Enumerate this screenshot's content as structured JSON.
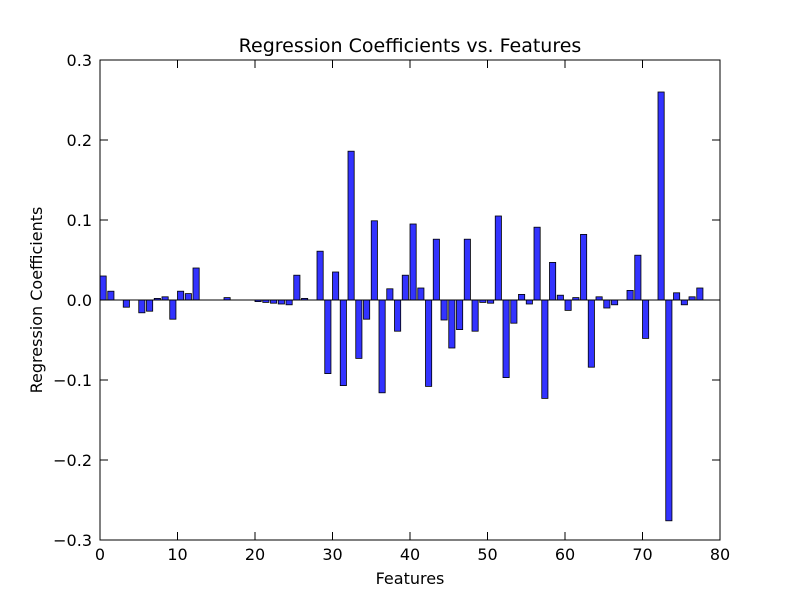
{
  "chart_data": {
    "type": "bar",
    "title": "Regression Coefficients vs. Features",
    "xlabel": "Features",
    "ylabel": "Regression Coefficients",
    "xlim": [
      0,
      80
    ],
    "ylim": [
      -0.3,
      0.3
    ],
    "xticks": [
      0,
      10,
      20,
      30,
      40,
      50,
      60,
      70,
      80
    ],
    "yticks": [
      -0.3,
      -0.2,
      -0.1,
      0.0,
      0.1,
      0.2,
      0.3
    ],
    "xtick_labels": [
      "0",
      "10",
      "20",
      "30",
      "40",
      "50",
      "60",
      "70",
      "80"
    ],
    "ytick_labels": [
      "−0.3",
      "−0.2",
      "−0.1",
      "0.0",
      "0.1",
      "0.2",
      "0.3"
    ],
    "grid": false,
    "bar_color": "#3333ff",
    "x": [
      0,
      1,
      2,
      3,
      4,
      5,
      6,
      7,
      8,
      9,
      10,
      11,
      12,
      13,
      14,
      15,
      16,
      17,
      18,
      19,
      20,
      21,
      22,
      23,
      24,
      25,
      26,
      27,
      28,
      29,
      30,
      31,
      32,
      33,
      34,
      35,
      36,
      37,
      38,
      39,
      40,
      41,
      42,
      43,
      44,
      45,
      46,
      47,
      48,
      49,
      50,
      51,
      52,
      53,
      54,
      55,
      56,
      57,
      58,
      59,
      60,
      61,
      62,
      63,
      64,
      65,
      66,
      67,
      68,
      69,
      70,
      71,
      72,
      73,
      74,
      75,
      76,
      77
    ],
    "values": [
      0.03,
      0.011,
      0.0,
      -0.009,
      0.0,
      -0.016,
      -0.014,
      0.002,
      0.004,
      -0.024,
      0.011,
      0.008,
      0.04,
      0.0,
      0.0,
      0.0,
      0.003,
      0.0,
      0.0,
      0.0,
      -0.002,
      -0.003,
      -0.004,
      -0.005,
      -0.006,
      0.031,
      0.002,
      0.0,
      0.061,
      -0.092,
      0.035,
      -0.107,
      0.186,
      -0.073,
      -0.024,
      0.099,
      -0.116,
      0.014,
      -0.039,
      0.031,
      0.095,
      0.015,
      -0.108,
      0.076,
      -0.025,
      -0.06,
      -0.037,
      0.076,
      -0.039,
      -0.003,
      -0.004,
      0.105,
      -0.097,
      -0.029,
      0.007,
      -0.005,
      0.091,
      -0.123,
      0.047,
      0.006,
      -0.013,
      0.003,
      0.082,
      -0.084,
      0.004,
      -0.01,
      -0.006,
      0.0,
      0.012,
      0.056,
      -0.048,
      0.0,
      0.26,
      -0.276,
      0.009,
      -0.006,
      0.004,
      0.015
    ]
  }
}
